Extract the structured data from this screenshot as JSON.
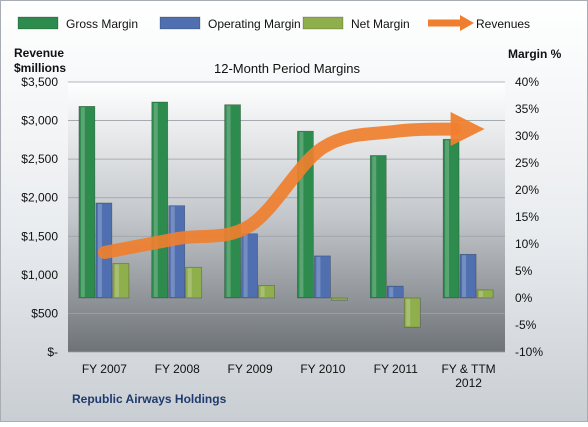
{
  "chart_data": {
    "type": "bar",
    "title": "12-Month Period Margins",
    "footer_label": "Republic Airways Holdings",
    "left_axis": {
      "label_line1": "Revenue",
      "label_line2": "$millions",
      "ylim": [
        0,
        3500
      ],
      "ticks": [
        0,
        500,
        1000,
        1500,
        2000,
        2500,
        3000,
        3500
      ],
      "tick_labels": [
        "$-",
        "$500",
        "$1,000",
        "$1,500",
        "$2,000",
        "$2,500",
        "$3,000",
        "$3,500"
      ]
    },
    "right_axis": {
      "label": "Margin %",
      "ylim": [
        -10,
        40
      ],
      "ticks": [
        -10,
        -5,
        0,
        5,
        10,
        15,
        20,
        25,
        30,
        35,
        40
      ],
      "tick_labels": [
        "-10%",
        "-5%",
        "0%",
        "5%",
        "10%",
        "15%",
        "20%",
        "25%",
        "30%",
        "35%",
        "40%"
      ]
    },
    "categories": [
      [
        "FY 2007"
      ],
      [
        "FY 2008"
      ],
      [
        "FY 2009"
      ],
      [
        "FY 2010"
      ],
      [
        "FY 2011"
      ],
      [
        "FY & TTM",
        "2012"
      ]
    ],
    "series": [
      {
        "name": "Gross Margin",
        "kind": "bar",
        "axis": "right",
        "color": "#2e8b4e",
        "values": [
          35.5,
          36.3,
          35.8,
          30.9,
          26.4,
          29.4
        ]
      },
      {
        "name": "Operating Margin",
        "kind": "bar",
        "axis": "right",
        "color": "#4f6fb0",
        "values": [
          17.6,
          17.1,
          11.9,
          7.8,
          2.2,
          8.1
        ]
      },
      {
        "name": "Net Margin",
        "kind": "bar",
        "axis": "right",
        "color": "#8fae4c",
        "values": [
          6.4,
          5.7,
          2.3,
          -0.4,
          -5.4,
          1.5
        ]
      },
      {
        "name": "Revenues",
        "kind": "arrow",
        "axis": "left",
        "color": "#ef7f2e",
        "values": [
          1290,
          1470,
          1640,
          2650,
          2860,
          2890
        ]
      }
    ],
    "grid": true,
    "legend_position": "top"
  }
}
